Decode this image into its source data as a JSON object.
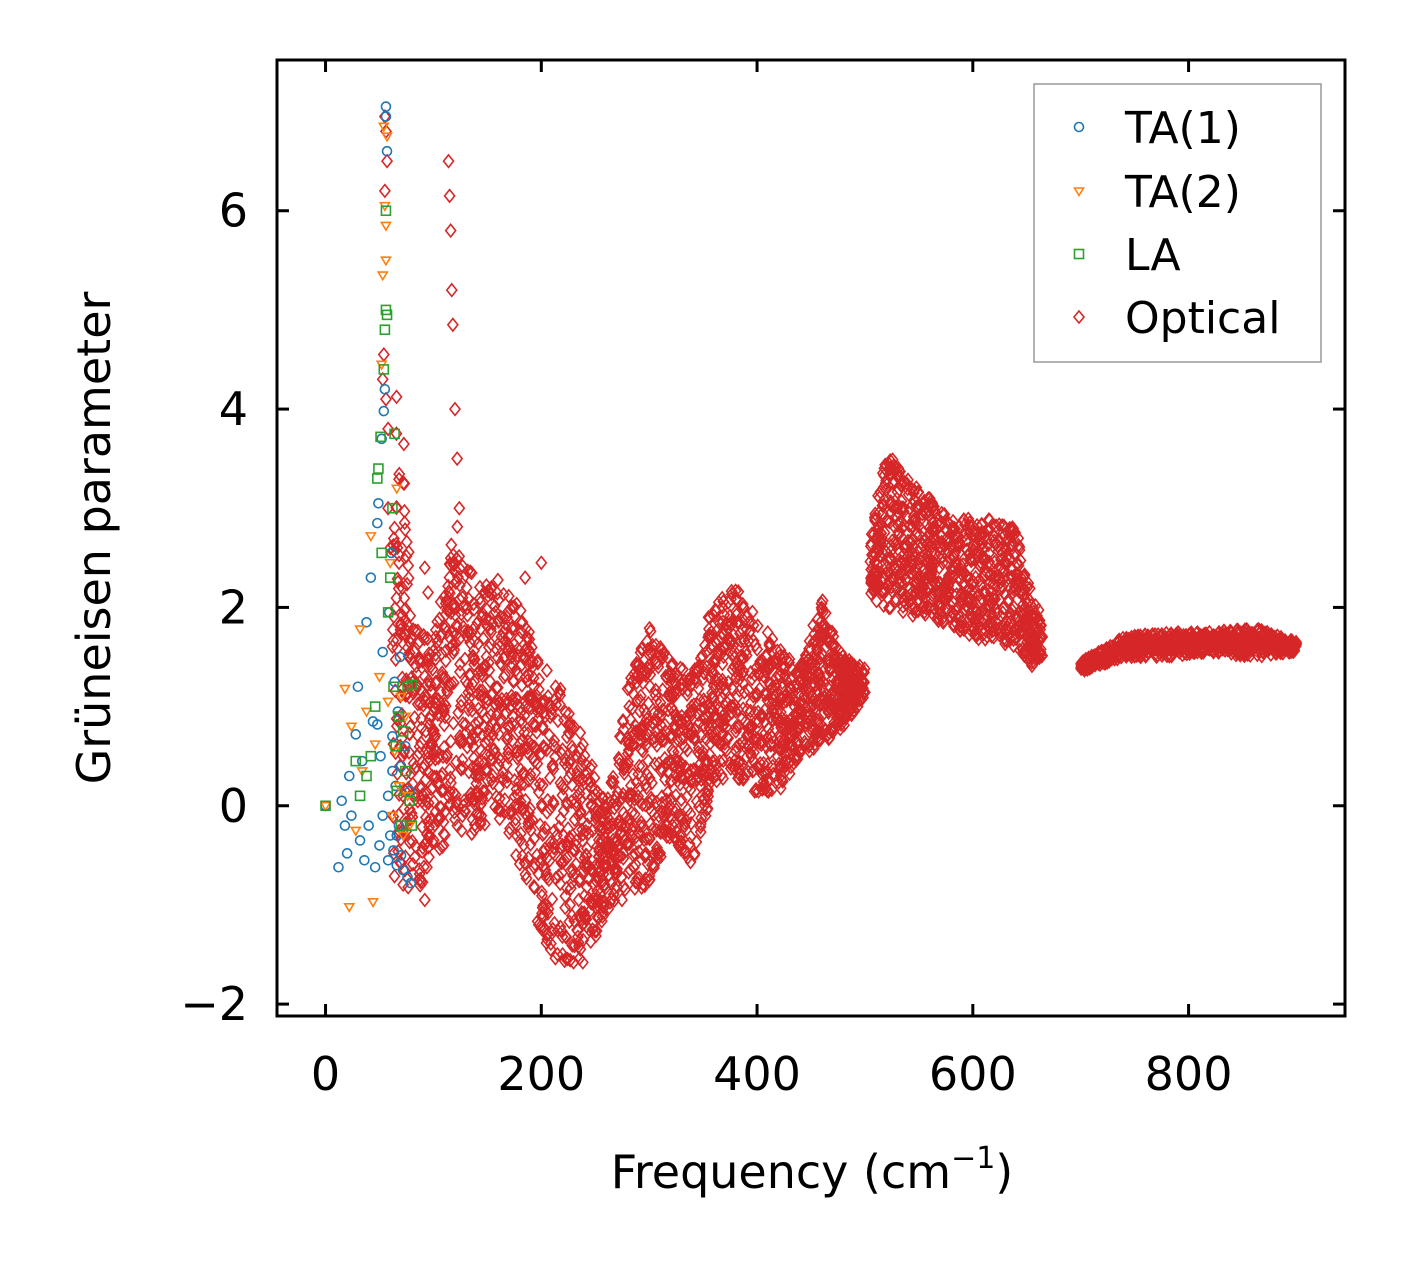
{
  "chart_data": {
    "type": "scatter",
    "title": "",
    "xlabel": "Frequency (cm",
    "xlabel_sup": "−1",
    "xlabel_close": ")",
    "ylabel": "Grüneisen parameter",
    "xlim": [
      -45,
      945
    ],
    "ylim": [
      -2.12,
      7.52
    ],
    "xticks": [
      0,
      200,
      400,
      600,
      800
    ],
    "xtick_labels": [
      "0",
      "200",
      "400",
      "600",
      "800"
    ],
    "yticks": [
      -2,
      0,
      2,
      4,
      6
    ],
    "ytick_labels": [
      "−2",
      "0",
      "2",
      "4",
      "6"
    ],
    "grid": false,
    "legend_position": "top-right",
    "series": [
      {
        "name": "TA(1)",
        "marker": "circle",
        "color": "#1f77b4",
        "points": [
          [
            0,
            0
          ],
          [
            12,
            -0.62
          ],
          [
            15,
            0.05
          ],
          [
            18,
            -0.2
          ],
          [
            20,
            -0.48
          ],
          [
            22,
            0.3
          ],
          [
            24,
            -0.1
          ],
          [
            28,
            0.72
          ],
          [
            30,
            1.2
          ],
          [
            32,
            -0.35
          ],
          [
            34,
            0.45
          ],
          [
            36,
            -0.55
          ],
          [
            38,
            1.85
          ],
          [
            40,
            -0.2
          ],
          [
            42,
            2.3
          ],
          [
            44,
            0.85
          ],
          [
            46,
            -0.62
          ],
          [
            48,
            2.85
          ],
          [
            49,
            3.05
          ],
          [
            50,
            -0.4
          ],
          [
            51,
            0.5
          ],
          [
            52,
            3.7
          ],
          [
            53,
            1.55
          ],
          [
            54,
            3.98
          ],
          [
            55,
            4.2
          ],
          [
            56,
            6.95
          ],
          [
            56,
            7.05
          ],
          [
            57,
            6.6
          ],
          [
            58,
            0.1
          ],
          [
            59,
            1.95
          ],
          [
            60,
            -0.3
          ],
          [
            61,
            2.55
          ],
          [
            62,
            0.7
          ],
          [
            63,
            -0.45
          ],
          [
            64,
            1.25
          ],
          [
            65,
            0.2
          ],
          [
            66,
            -0.6
          ],
          [
            67,
            0.95
          ],
          [
            68,
            -0.2
          ],
          [
            69,
            1.5
          ],
          [
            70,
            0.4
          ],
          [
            72,
            -0.65
          ],
          [
            74,
            0.6
          ],
          [
            76,
            -0.72
          ],
          [
            78,
            0.15
          ],
          [
            79,
            -0.78
          ],
          [
            48,
            0.82
          ],
          [
            53,
            -0.1
          ],
          [
            58,
            -0.55
          ],
          [
            62,
            0.35
          ],
          [
            66,
            -0.3
          ],
          [
            70,
            -0.5
          ]
        ]
      },
      {
        "name": "TA(2)",
        "marker": "triangle-down",
        "color": "#ff7f0e",
        "points": [
          [
            0,
            0
          ],
          [
            18,
            1.18
          ],
          [
            22,
            -1.02
          ],
          [
            24,
            0.8
          ],
          [
            28,
            -0.25
          ],
          [
            32,
            1.78
          ],
          [
            34,
            0.35
          ],
          [
            38,
            0.95
          ],
          [
            42,
            2.72
          ],
          [
            44,
            -0.97
          ],
          [
            46,
            0.62
          ],
          [
            50,
            1.3
          ],
          [
            52,
            4.45
          ],
          [
            53,
            5.35
          ],
          [
            54,
            6.85
          ],
          [
            55,
            6.05
          ],
          [
            56,
            5.5
          ],
          [
            56,
            5.85
          ],
          [
            57,
            6.75
          ],
          [
            58,
            1.05
          ],
          [
            60,
            2.45
          ],
          [
            62,
            -0.1
          ],
          [
            64,
            0.55
          ],
          [
            66,
            3.2
          ],
          [
            68,
            0.2
          ],
          [
            70,
            1.1
          ],
          [
            72,
            -0.3
          ],
          [
            74,
            0.9
          ],
          [
            76,
            0.1
          ],
          [
            78,
            -0.2
          ]
        ]
      },
      {
        "name": "LA",
        "marker": "square",
        "color": "#2ca02c",
        "points": [
          [
            0,
            0
          ],
          [
            28,
            0.45
          ],
          [
            32,
            0.1
          ],
          [
            38,
            0.3
          ],
          [
            42,
            0.5
          ],
          [
            46,
            1.0
          ],
          [
            48,
            3.3
          ],
          [
            49,
            3.4
          ],
          [
            51,
            3.72
          ],
          [
            52,
            2.55
          ],
          [
            54,
            4.4
          ],
          [
            55,
            4.8
          ],
          [
            56,
            5.0
          ],
          [
            56,
            6.0
          ],
          [
            57,
            4.95
          ],
          [
            58,
            1.95
          ],
          [
            60,
            2.3
          ],
          [
            62,
            3.0
          ],
          [
            63,
            1.2
          ],
          [
            64,
            3.75
          ],
          [
            65,
            0.6
          ],
          [
            66,
            0.15
          ],
          [
            68,
            0.9
          ],
          [
            70,
            -0.2
          ],
          [
            72,
            0.75
          ],
          [
            74,
            0.35
          ],
          [
            76,
            1.2
          ],
          [
            78,
            0.05
          ],
          [
            80,
            -0.2
          ],
          [
            80,
            1.22
          ]
        ]
      },
      {
        "name": "Optical",
        "marker": "diamond",
        "color": "#d62728",
        "points": [],
        "note": "dense continuous band; regions described by envelopes below (frequency, gamma_low, gamma_high)",
        "envelopes": [
          [
            [
              62,
              -0.8,
              4.4
            ],
            [
              70,
              -0.8,
              4.4
            ],
            [
              80,
              -0.85,
              1.8
            ],
            [
              90,
              -0.8,
              1.8
            ],
            [
              100,
              -0.5,
              1.7
            ],
            [
              120,
              -0.3,
              2.9
            ],
            [
              140,
              -0.3,
              2.2
            ],
            [
              160,
              -0.1,
              2.3
            ],
            [
              180,
              -0.6,
              2.0
            ],
            [
              200,
              -1.3,
              1.5
            ],
            [
              215,
              -1.6,
              1.3
            ],
            [
              230,
              -1.7,
              0.9
            ],
            [
              245,
              -1.5,
              0.5
            ],
            [
              260,
              -1.1,
              0.0
            ],
            [
              280,
              -0.9,
              1.2
            ],
            [
              300,
              -0.8,
              1.8
            ],
            [
              320,
              -0.3,
              1.5
            ],
            [
              340,
              -0.6,
              1.3
            ],
            [
              360,
              0.2,
              2.1
            ],
            [
              380,
              0.3,
              2.2
            ],
            [
              400,
              0.1,
              1.9
            ],
            [
              420,
              0.1,
              1.6
            ],
            [
              440,
              0.5,
              1.4
            ],
            [
              460,
              0.6,
              2.1
            ],
            [
              480,
              0.8,
              1.5
            ],
            [
              500,
              1.1,
              1.4
            ]
          ],
          [
            [
              505,
              2.1,
              2.7
            ],
            [
              520,
              2.0,
              3.6
            ],
            [
              540,
              1.9,
              3.3
            ],
            [
              560,
              1.9,
              3.1
            ],
            [
              580,
              1.8,
              2.9
            ],
            [
              600,
              1.7,
              2.9
            ],
            [
              620,
              1.6,
              2.9
            ],
            [
              640,
              1.6,
              2.8
            ],
            [
              655,
              1.4,
              2.1
            ],
            [
              665,
              1.5,
              1.9
            ]
          ],
          [
            [
              700,
              1.35,
              1.45
            ],
            [
              740,
              1.5,
              1.7
            ],
            [
              780,
              1.5,
              1.75
            ],
            [
              820,
              1.55,
              1.75
            ],
            [
              860,
              1.5,
              1.8
            ],
            [
              900,
              1.55,
              1.65
            ]
          ]
        ],
        "outliers": [
          [
            114,
            6.5
          ],
          [
            115,
            6.15
          ],
          [
            116,
            5.8
          ],
          [
            117,
            5.2
          ],
          [
            118,
            4.85
          ],
          [
            120,
            4.0
          ],
          [
            122,
            3.5
          ],
          [
            124,
            3.0
          ],
          [
            92,
            2.4
          ],
          [
            95,
            2.15
          ],
          [
            200,
            2.45
          ],
          [
            185,
            2.3
          ],
          [
            92,
            -0.95
          ],
          [
            55,
            6.95
          ],
          [
            56,
            6.8
          ],
          [
            57,
            6.5
          ],
          [
            55,
            6.2
          ],
          [
            54,
            4.55
          ],
          [
            56,
            4.1
          ],
          [
            53,
            4.3
          ],
          [
            58,
            3.8
          ],
          [
            58,
            3.0
          ],
          [
            60,
            2.6
          ]
        ]
      }
    ]
  }
}
